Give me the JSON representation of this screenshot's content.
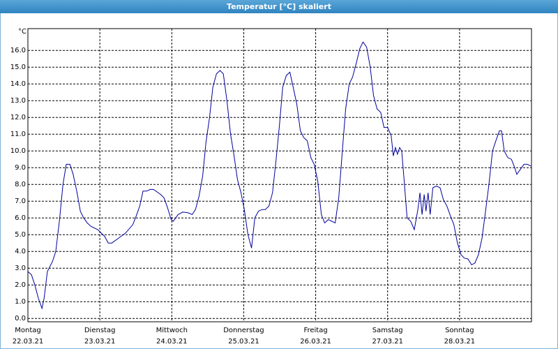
{
  "chart_data": {
    "type": "line",
    "title": "Temperatur [°C] skaliert",
    "y_unit": "°C",
    "x": [
      0,
      1.2,
      2.3,
      3.5,
      4.7,
      5.4,
      6.5,
      8.2,
      9.3,
      10.5,
      11.7,
      12.8,
      14.0,
      15.1,
      16.3,
      17.5,
      18.6,
      19.8,
      21.0,
      23.3,
      25.6,
      26.8,
      28.0,
      30.3,
      32.6,
      35.0,
      36.1,
      37.3,
      38.4,
      39.6,
      40.8,
      41.9,
      44.3,
      45.4,
      46.6,
      47.8,
      48.5,
      50.1,
      51.7,
      53.6,
      54.8,
      55.9,
      57.1,
      58.3,
      59.4,
      60.6,
      61.7,
      62.9,
      64.1,
      65.2,
      66.4,
      67.6,
      68.7,
      69.9,
      71.1,
      72.2,
      73.4,
      74.6,
      75.7,
      76.9,
      78.1,
      79.2,
      80.4,
      81.6,
      82.7,
      83.9,
      85.0,
      86.2,
      87.4,
      88.5,
      89.7,
      90.9,
      92.0,
      93.2,
      94.4,
      95.5,
      96.7,
      97.9,
      99.0,
      100.2,
      101.4,
      102.5,
      103.7,
      104.9,
      106.0,
      107.2,
      108.3,
      109.5,
      110.7,
      111.8,
      113.0,
      114.2,
      115.3,
      116.5,
      117.7,
      118.8,
      120.0,
      121.2,
      121.9,
      122.6,
      123.3,
      124.0,
      124.7,
      125.4,
      126.5,
      127.7,
      128.9,
      130.1,
      130.8,
      131.5,
      132.2,
      132.8,
      133.5,
      134.2,
      135.1,
      136.3,
      137.5,
      138.6,
      139.8,
      141.0,
      142.1,
      143.3,
      144.5,
      145.6,
      146.8,
      148.0,
      149.1,
      150.3,
      151.5,
      152.6,
      153.8,
      155.0,
      156.1,
      157.3,
      158.0,
      158.9,
      160.1,
      161.3,
      162.4,
      163.1,
      164.3,
      165.5,
      166.6,
      167.8
    ],
    "series": [
      {
        "color": "#00009c",
        "values": [
          2.8,
          2.6,
          2.0,
          1.2,
          0.6,
          1.2,
          2.8,
          3.4,
          4.0,
          5.8,
          8.0,
          9.2,
          9.2,
          8.6,
          7.6,
          6.4,
          6.0,
          5.7,
          5.5,
          5.3,
          4.9,
          4.5,
          4.5,
          4.8,
          5.1,
          5.6,
          6.1,
          6.7,
          7.6,
          7.6,
          7.7,
          7.7,
          7.4,
          7.2,
          6.6,
          5.9,
          5.8,
          6.2,
          6.35,
          6.3,
          6.2,
          6.5,
          7.3,
          8.5,
          10.5,
          12.0,
          13.8,
          14.6,
          14.8,
          14.6,
          13.0,
          11.0,
          9.8,
          8.3,
          7.5,
          6.5,
          5.0,
          4.2,
          6.0,
          6.4,
          6.5,
          6.5,
          6.7,
          7.5,
          9.3,
          11.5,
          13.8,
          14.5,
          14.7,
          13.8,
          12.8,
          11.2,
          10.8,
          10.6,
          9.6,
          9.2,
          8.2,
          6.2,
          5.7,
          5.9,
          5.8,
          5.7,
          7.2,
          10.0,
          12.5,
          14.0,
          14.4,
          15.2,
          16.1,
          16.5,
          16.2,
          15.0,
          13.3,
          12.5,
          12.3,
          11.4,
          11.4,
          10.9,
          9.7,
          10.2,
          9.8,
          10.2,
          10.0,
          8.5,
          6.0,
          5.8,
          5.3,
          6.5,
          7.5,
          6.2,
          7.4,
          6.4,
          7.5,
          6.2,
          7.8,
          7.9,
          7.8,
          7.1,
          6.7,
          6.1,
          5.6,
          4.5,
          3.8,
          3.6,
          3.55,
          3.2,
          3.3,
          3.8,
          4.8,
          6.3,
          8.0,
          10.0,
          10.6,
          11.2,
          11.2,
          10.0,
          9.6,
          9.5,
          9.0,
          8.6,
          8.9,
          9.2,
          9.2,
          9.1
        ]
      }
    ],
    "xlim": [
      0,
      168
    ],
    "xticks": [
      {
        "value": 0,
        "label": "Montag",
        "date": "22.03.21"
      },
      {
        "value": 24,
        "label": "Dienstag",
        "date": "23.03.21"
      },
      {
        "value": 48,
        "label": "Mittwoch",
        "date": "24.03.21"
      },
      {
        "value": 72,
        "label": "Donnerstag",
        "date": "25.03.21"
      },
      {
        "value": 96,
        "label": "Freitag",
        "date": "26.03.21"
      },
      {
        "value": 120,
        "label": "Samstag",
        "date": "27.03.21"
      },
      {
        "value": 144,
        "label": "Sonntag",
        "date": "28.03.21"
      }
    ],
    "ylim": [
      -0.2,
      17.3
    ],
    "yticks": [
      {
        "value": 0,
        "label": "0.0"
      },
      {
        "value": 1,
        "label": "1.0"
      },
      {
        "value": 2,
        "label": "2.0"
      },
      {
        "value": 3,
        "label": "3.0"
      },
      {
        "value": 4,
        "label": "4.0"
      },
      {
        "value": 5,
        "label": "5.0"
      },
      {
        "value": 6,
        "label": "6.0"
      },
      {
        "value": 7,
        "label": "7.0"
      },
      {
        "value": 8,
        "label": "8.0"
      },
      {
        "value": 9,
        "label": "9.0"
      },
      {
        "value": 10,
        "label": "10.0"
      },
      {
        "value": 11,
        "label": "11.0"
      },
      {
        "value": 12,
        "label": "12.0"
      },
      {
        "value": 13,
        "label": "13.0"
      },
      {
        "value": 14,
        "label": "14.0"
      },
      {
        "value": 15,
        "label": "15.0"
      },
      {
        "value": 16,
        "label": "16.0"
      }
    ],
    "grid": true
  }
}
